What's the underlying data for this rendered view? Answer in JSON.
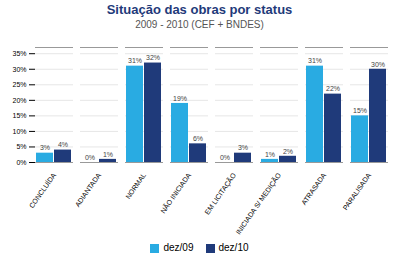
{
  "chart_data": {
    "type": "bar",
    "title": "Situação das obras por status",
    "subtitle": "2009 - 2010 (CEF + BNDES)",
    "categories": [
      "CONCLUÍDA",
      "ADIANTADA",
      "NORMAL",
      "NÃO INICIADA",
      "EM LICITAÇÃO",
      "INICIADA S/ MEDIÇÃO",
      "ATRASADA",
      "PARALISADA"
    ],
    "series": [
      {
        "name": "dez/09",
        "color": "#29ABE2",
        "values": [
          3,
          0,
          31,
          19,
          0,
          1,
          31,
          15
        ],
        "value_labels": [
          "3%",
          "0%",
          "31%",
          "19%",
          "0%",
          "1%",
          "31%",
          "15%"
        ]
      },
      {
        "name": "dez/10",
        "color": "#1F3A7A",
        "values": [
          4,
          1,
          32,
          6,
          3,
          2,
          22,
          30
        ],
        "value_labels": [
          "4%",
          "1%",
          "32%",
          "6%",
          "3%",
          "2%",
          "22%",
          "30%"
        ]
      }
    ],
    "ylim": [
      0,
      37
    ],
    "yticks": [
      {
        "value": 0,
        "label": "0%"
      },
      {
        "value": 5,
        "label": "5%"
      },
      {
        "value": 10,
        "label": "10%"
      },
      {
        "value": 15,
        "label": "15%"
      },
      {
        "value": 20,
        "label": "20%"
      },
      {
        "value": 25,
        "label": "25%"
      },
      {
        "value": 30,
        "label": "30%"
      },
      {
        "value": 35,
        "label": "35%"
      }
    ],
    "grid": true,
    "data_labels": true,
    "legend": "bottom"
  }
}
